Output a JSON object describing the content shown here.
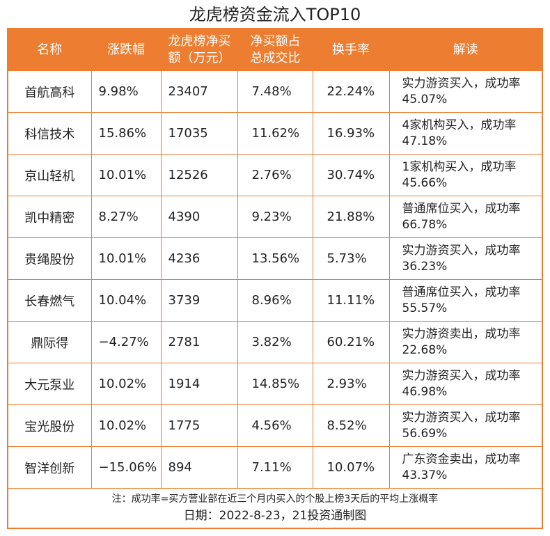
{
  "title": "龙虎榜资金流入TOP10",
  "headers": [
    "名称",
    "涨跌幅",
    "龙虎榜净买额（万元）",
    "净买额占总成交比",
    "换手率",
    "解读"
  ],
  "rows": [
    [
      "首航高科",
      "9.98%",
      "23407",
      "7.48%",
      "22.24%",
      "实力游资买入，成功率45.07%"
    ],
    [
      "科信技术",
      "15.86%",
      "17035",
      "11.62%",
      "16.93%",
      "4家机构买入，成功率47.18%"
    ],
    [
      "京山轻机",
      "10.01%",
      "12526",
      "2.76%",
      "30.74%",
      "1家机构买入，成功率45.66%"
    ],
    [
      "凯中精密",
      "8.27%",
      "4390",
      "9.23%",
      "21.88%",
      "普通席位买入，成功率66.78%"
    ],
    [
      "贵绳股份",
      "10.01%",
      "4236",
      "13.56%",
      "5.73%",
      "实力游资买入，成功率36.23%"
    ],
    [
      "长春燃气",
      "10.04%",
      "3739",
      "8.96%",
      "11.11%",
      "普通席位买入，成功率55.57%"
    ],
    [
      "鼎际得",
      "−4.27%",
      "2781",
      "3.82%",
      "60.21%",
      "实力游资卖出，成功率22.68%"
    ],
    [
      "大元泵业",
      "10.02%",
      "1914",
      "14.85%",
      "2.93%",
      "实力游资买入，成功率46.98%"
    ],
    [
      "宝光股份",
      "10.02%",
      "1775",
      "4.56%",
      "8.52%",
      "实力游资买入，成功率56.69%"
    ],
    [
      "智洋创新",
      "−15.06%",
      "894",
      "7.11%",
      "10.07%",
      "广东资金卖出，成功率43.37%"
    ]
  ],
  "note": "注：成功率=买方营业部在近三个月内买入的个股上榜3天后的平均上涨概率",
  "date": "日期：2022-8-23，21投资通制图",
  "colors": {
    "header": "#ED7D31"
  }
}
